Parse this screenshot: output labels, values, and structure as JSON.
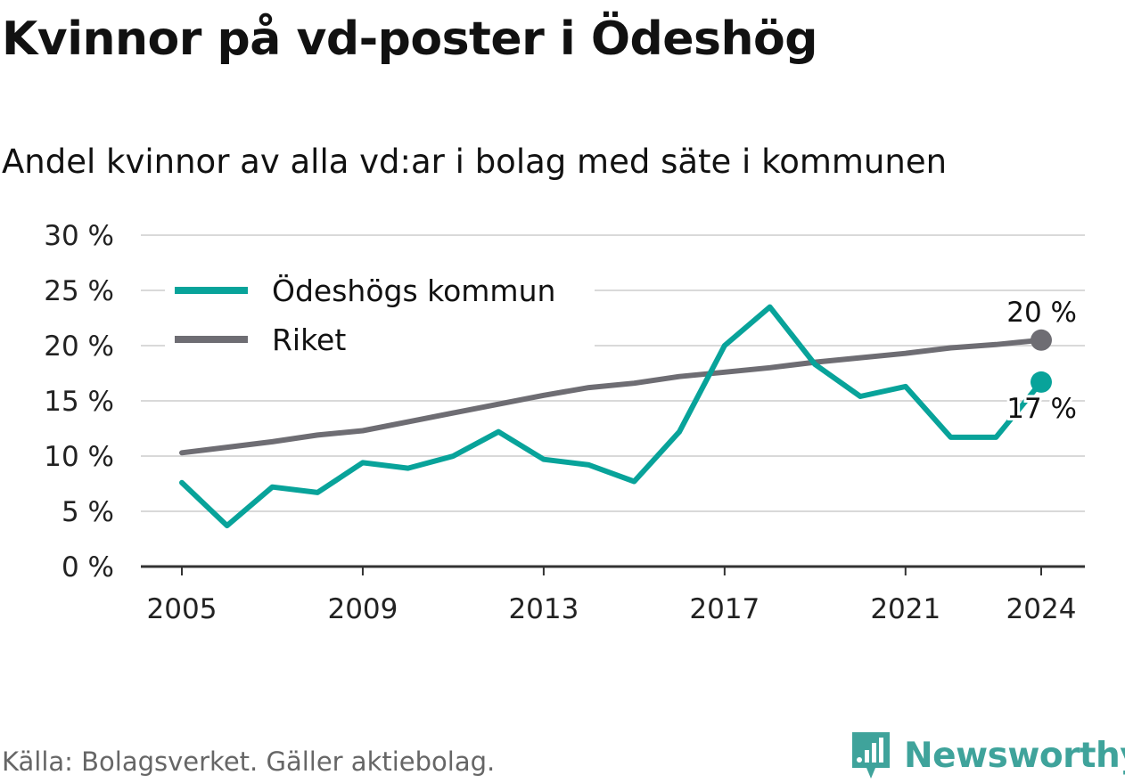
{
  "header": {
    "title": "Kvinnor på vd-poster i Ödeshög",
    "subtitle": "Andel kvinnor av alla vd:ar i bolag med säte i kommunen"
  },
  "footer": {
    "source": "Källa: Bolagsverket. Gäller aktiebolag.",
    "brand": "Newsworthy"
  },
  "colors": {
    "local": "#08a39a",
    "national": "#6e6d73",
    "grid": "#d9d9d9",
    "axis": "#333333",
    "brand": "#3fa39b"
  },
  "chart_data": {
    "type": "line",
    "title": "Kvinnor på vd-poster i Ödeshög",
    "subtitle": "Andel kvinnor av alla vd:ar i bolag med säte i kommunen",
    "x": [
      2005,
      2006,
      2007,
      2008,
      2009,
      2010,
      2011,
      2012,
      2013,
      2014,
      2015,
      2016,
      2017,
      2018,
      2019,
      2020,
      2021,
      2022,
      2023,
      2024
    ],
    "x_ticks": [
      2005,
      2009,
      2013,
      2017,
      2021,
      2024
    ],
    "y_ticks": [
      "0 %",
      "5 %",
      "10 %",
      "15 %",
      "20 %",
      "25 %",
      "30 %"
    ],
    "ylim": [
      0,
      30
    ],
    "grid": true,
    "legend_position": "top-left",
    "series": [
      {
        "name": "Ödeshögs kommun",
        "color": "#08a39a",
        "values": [
          7.6,
          3.7,
          7.2,
          6.7,
          9.4,
          8.9,
          10.0,
          12.2,
          9.7,
          9.2,
          7.7,
          12.2,
          20.0,
          23.5,
          18.3,
          15.4,
          16.3,
          11.7,
          11.7,
          16.7
        ],
        "end_label": "17 %"
      },
      {
        "name": "Riket",
        "color": "#6e6d73",
        "values": [
          10.3,
          10.8,
          11.3,
          11.9,
          12.3,
          13.1,
          13.9,
          14.7,
          15.5,
          16.2,
          16.6,
          17.2,
          17.6,
          18.0,
          18.5,
          18.9,
          19.3,
          19.8,
          20.1,
          20.5
        ],
        "end_label": "20 %"
      }
    ]
  }
}
